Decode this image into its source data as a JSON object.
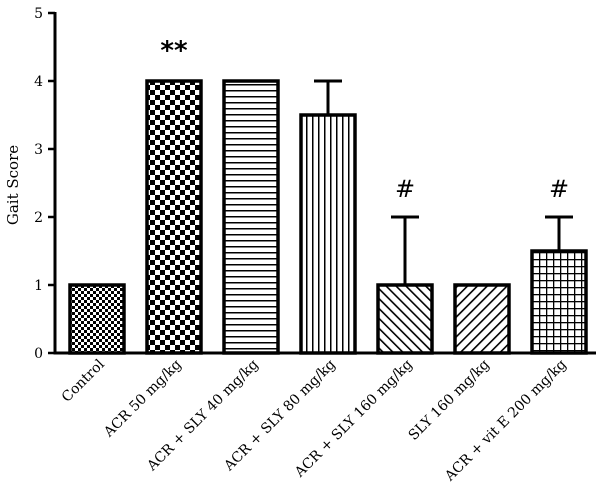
{
  "chart_data": {
    "type": "bar",
    "title": "",
    "xlabel": "",
    "ylabel": "Gait Score",
    "ylim": [
      0,
      5
    ],
    "yticks": [
      "0",
      "1",
      "2",
      "3",
      "4",
      "5"
    ],
    "grid": false,
    "categories": [
      "Control",
      "ACR 50 mg/kg",
      "ACR + SLY 40 mg/kg",
      "ACR + SLY 80 mg/kg",
      "ACR + SLY 160 mg/kg",
      "SLY 160 mg/kg",
      "ACR + vit E 200 mg/kg"
    ],
    "values": [
      1,
      4,
      4,
      3.5,
      1,
      1,
      1.5
    ],
    "error": [
      0,
      0,
      0,
      0.5,
      1,
      0,
      0.5
    ],
    "patterns": [
      "fine-checker",
      "checker",
      "horizontal-lines",
      "vertical-lines",
      "diagonal-up",
      "diagonal-down",
      "grid"
    ],
    "annotations": [
      "",
      "**",
      "",
      "",
      "#",
      "",
      "#"
    ],
    "colors": {
      "bar_stroke": "#000000",
      "fill": "#ffffff"
    }
  }
}
